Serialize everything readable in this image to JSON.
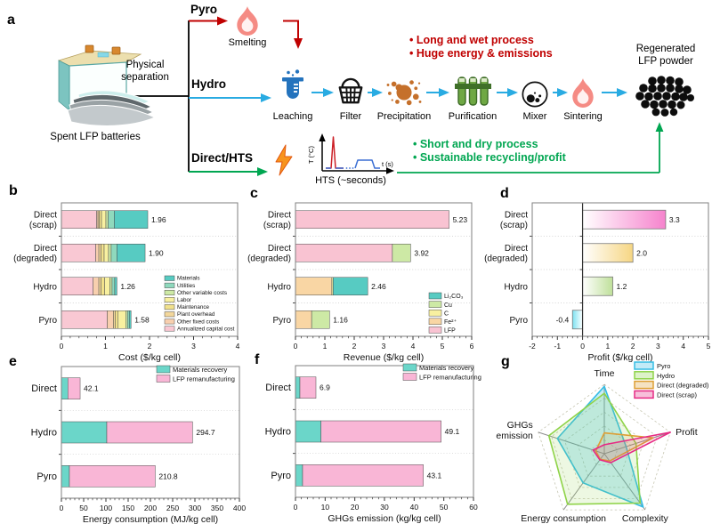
{
  "panel_a": {
    "letter": "a",
    "spent_label": "Spent LFP batteries",
    "physical_separation": "Physical\nseparation",
    "route_pyro": "Pyro",
    "route_hydro": "Hydro",
    "route_direct": "Direct/HTS",
    "step_smelting": "Smelting",
    "step_leaching": "Leaching",
    "step_filter": "Filter",
    "step_precipitation": "Precipitation",
    "step_purification": "Purification",
    "step_mixer": "Mixer",
    "step_sintering": "Sintering",
    "red_bullets": [
      "• Long and wet process",
      "• Huge energy & emissions"
    ],
    "green_bullets": [
      "• Short and dry process",
      "• Sustainable recycling/profit"
    ],
    "regenerated_label": "Regenerated\nLFP powder",
    "hts_ylabel": "T (°C)",
    "hts_xlabel": "t (s)",
    "hts_caption": "HTS (~seconds)",
    "colors": {
      "pyro_arrow": "#c00000",
      "hydro_arrow": "#29abe2",
      "direct_arrow": "#00a651"
    }
  },
  "chart_data": [
    {
      "id": "b",
      "letter": "b",
      "type": "bar",
      "stacked": true,
      "orientation": "horizontal",
      "title": "",
      "xlabel": "Cost ($/kg cell)",
      "xlim": [
        0,
        4
      ],
      "xticks": [
        0,
        1,
        2,
        3,
        4
      ],
      "minor_step": 0.2,
      "categories": [
        [
          "Direct",
          "(scrap)"
        ],
        [
          "Direct",
          "(degraded)"
        ],
        [
          "Hydro"
        ],
        [
          "Pyro"
        ]
      ],
      "totals": [
        1.96,
        1.9,
        1.26,
        1.58
      ],
      "value_labels": [
        "1.96",
        "1.90",
        "1.26",
        "1.58"
      ],
      "series": [
        {
          "name": "Annualized capital cost",
          "color": "#f9c8d3",
          "values": [
            0.8,
            0.78,
            0.72,
            1.04
          ]
        },
        {
          "name": "Other fixed costs",
          "color": "#f8cfae",
          "values": [
            0.03,
            0.07,
            0.13,
            0.14
          ]
        },
        {
          "name": "Plant overhead",
          "color": "#f3d79b",
          "values": [
            0.03,
            0.05,
            0.05,
            0.04
          ]
        },
        {
          "name": "Maintenance",
          "color": "#f1e18c",
          "values": [
            0.05,
            0.07,
            0.08,
            0.06
          ]
        },
        {
          "name": "Labor",
          "color": "#f8f0a0",
          "values": [
            0.1,
            0.1,
            0.12,
            0.18
          ]
        },
        {
          "name": "Other variable costs",
          "color": "#cde9a5",
          "values": [
            0.05,
            0.06,
            0.05,
            0.04
          ]
        },
        {
          "name": "Utilities",
          "color": "#8fd9bd",
          "values": [
            0.14,
            0.13,
            0.06,
            0.04
          ]
        },
        {
          "name": "Materials",
          "color": "#57cbc2",
          "values": [
            0.76,
            0.64,
            0.05,
            0.04
          ]
        }
      ],
      "legend_position": "right-middle",
      "grid": "dotted-row-separators"
    },
    {
      "id": "c",
      "letter": "c",
      "type": "bar",
      "stacked": true,
      "orientation": "horizontal",
      "title": "",
      "xlabel": "Revenue ($/kg cell)",
      "xlim": [
        0,
        6
      ],
      "xticks": [
        0,
        1,
        2,
        3,
        4,
        5,
        6
      ],
      "minor_step": 0.2,
      "categories": [
        [
          "Direct",
          "(scrap)"
        ],
        [
          "Direct",
          "(degraded)"
        ],
        [
          "Hydro"
        ],
        [
          "Pyro"
        ]
      ],
      "totals": [
        5.23,
        3.92,
        2.46,
        1.16
      ],
      "value_labels": [
        "5.23",
        "3.92",
        "2.46",
        "1.16"
      ],
      "series": [
        {
          "name": "LFP",
          "color": "#f9c3d2",
          "values": [
            5.23,
            3.3,
            0,
            0
          ]
        },
        {
          "name": "Fe²⁺",
          "color": "#f9d6a4",
          "values": [
            0,
            0,
            1.24,
            0.55
          ]
        },
        {
          "name": "C",
          "color": "#f8f0a0",
          "values": [
            0,
            0,
            0.04,
            0
          ]
        },
        {
          "name": "Cu",
          "color": "#cde9a5",
          "values": [
            0,
            0.62,
            0,
            0.61
          ]
        },
        {
          "name": "Li₂CO₃",
          "color": "#57cbc2",
          "values": [
            0,
            0,
            1.18,
            0
          ]
        }
      ],
      "legend_position": "right-middle",
      "grid": "dotted-row-separators"
    },
    {
      "id": "d",
      "letter": "d",
      "type": "bar",
      "stacked": false,
      "orientation": "horizontal",
      "title": "",
      "xlabel": "Profit ($/kg cell)",
      "xlim": [
        -2,
        5
      ],
      "xticks": [
        -2,
        -1,
        0,
        1,
        2,
        3,
        4,
        5
      ],
      "minor_step": 0.2,
      "categories": [
        [
          "Direct",
          "(scrap)"
        ],
        [
          "Direct",
          "(degraded)"
        ],
        [
          "Hydro"
        ],
        [
          "Pyro"
        ]
      ],
      "values": [
        3.3,
        2.0,
        1.2,
        -0.4
      ],
      "value_labels": [
        "3.3",
        "2.0",
        "1.2",
        "-0.4"
      ],
      "bar_colors": [
        "#f683cd",
        "#f6d683",
        "#bfe09a",
        "#7de2f2"
      ],
      "bar_style": "gradient-white-to-color-from-zero",
      "grid": "dotted-row-separators"
    },
    {
      "id": "e",
      "letter": "e",
      "type": "bar",
      "stacked": true,
      "orientation": "horizontal",
      "title": "",
      "xlabel": "Energy consumption (MJ/kg cell)",
      "xlim": [
        0,
        400
      ],
      "xticks": [
        0,
        50,
        100,
        150,
        200,
        250,
        300,
        350,
        400
      ],
      "minor_step": 10,
      "categories": [
        [
          "Direct"
        ],
        [
          "Hydro"
        ],
        [
          "Pyro"
        ]
      ],
      "totals": [
        42.1,
        294.7,
        210.8
      ],
      "value_labels": [
        "42.1",
        "294.7",
        "210.8"
      ],
      "series": [
        {
          "name": "Materials recovery",
          "color": "#6bd6c9",
          "values": [
            14.5,
            102.0,
            18.0
          ]
        },
        {
          "name": "LFP remanufacturing",
          "color": "#f9b6d6",
          "values": [
            27.6,
            192.7,
            192.8
          ]
        }
      ],
      "legend_position": "top-right",
      "grid": "dotted-row-separators"
    },
    {
      "id": "f",
      "letter": "f",
      "type": "bar",
      "stacked": true,
      "orientation": "horizontal",
      "title": "",
      "xlabel": "GHGs emission (kg/kg cell)",
      "xlim": [
        0,
        60
      ],
      "xticks": [
        0,
        10,
        20,
        30,
        40,
        50,
        60
      ],
      "minor_step": 2,
      "categories": [
        [
          "Direct"
        ],
        [
          "Hydro"
        ],
        [
          "Pyro"
        ]
      ],
      "totals": [
        6.9,
        49.1,
        43.1
      ],
      "value_labels": [
        "6.9",
        "49.1",
        "43.1"
      ],
      "series": [
        {
          "name": "Materials recovery",
          "color": "#6bd6c9",
          "values": [
            1.5,
            8.6,
            2.4
          ]
        },
        {
          "name": "LFP remanufacturing",
          "color": "#f9b6d6",
          "values": [
            5.4,
            40.5,
            40.7
          ]
        }
      ],
      "legend_position": "top-right",
      "grid": "dotted-row-separators"
    },
    {
      "id": "g",
      "letter": "g",
      "type": "radar",
      "axes": [
        "Time",
        "Profit",
        "Complexity",
        "Energy consumption",
        "GHGs\nemission"
      ],
      "rings": 5,
      "axis_range": [
        0,
        1
      ],
      "grid": "dashed-pentagon-rings",
      "series": [
        {
          "name": "Pyro",
          "color": "#35bde4",
          "fill_opacity": 0.28,
          "values": [
            0.97,
            0.33,
            0.95,
            0.52,
            0.71
          ]
        },
        {
          "name": "Hydro",
          "color": "#8fd348",
          "fill_opacity": 0.16,
          "values": [
            0.87,
            0.48,
            0.88,
            0.9,
            0.84
          ]
        },
        {
          "name": "Direct (degraded)",
          "color": "#dd9f35",
          "fill_opacity": 0.14,
          "values": [
            0.3,
            0.74,
            0.13,
            0.1,
            0.13
          ]
        },
        {
          "name": "Direct (scrap)",
          "color": "#e62a84",
          "fill_opacity": 0.12,
          "values": [
            0.13,
            1.0,
            0.16,
            0.11,
            0.17
          ]
        }
      ],
      "legend_position": "top-right"
    }
  ]
}
